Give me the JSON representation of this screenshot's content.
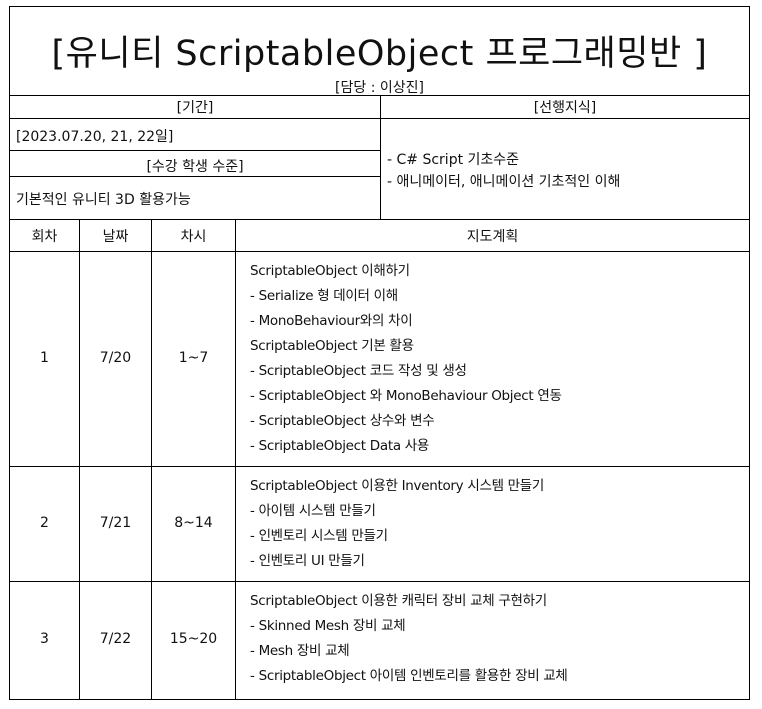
{
  "title": "[유니티 ScriptableObject 프로그래밍반 ]",
  "manager": "[담당 : 이상진]",
  "period": {
    "header": "[기간]",
    "dates": "[2023.07.20, 21, 22일]"
  },
  "student_level": {
    "header": "[수강 학생 수준]",
    "text": "기본적인 유니티 3D 활용가능"
  },
  "prerequisite": {
    "header": "[선행지식]",
    "items": [
      "- C# Script 기초수준",
      "- 애니메이터, 애니메이션 기초적인 이해"
    ]
  },
  "schedule": {
    "headers": [
      "회차",
      "날짜",
      "차시",
      "지도계획"
    ],
    "rows": [
      {
        "session": "1",
        "date": "7/20",
        "periods": "1~7",
        "plan": [
          "ScriptableObject 이해하기",
          "- Serialize 형 데이터 이해",
          "-  MonoBehaviour와의 차이",
          "ScriptableObject 기본 활용",
          "-  ScriptableObject 코드 작성 및 생성",
          "-  ScriptableObject 와 MonoBehaviour Object 연동",
          "-  ScriptableObject 상수와 변수",
          "-  ScriptableObject Data 사용"
        ]
      },
      {
        "session": "2",
        "date": "7/21",
        "periods": "8~14",
        "plan": [
          "ScriptableObject 이용한 Inventory 시스템 만들기",
          "- 아이템 시스템 만들기",
          "- 인벤토리 시스템 만들기",
          "- 인벤토리 UI 만들기"
        ]
      },
      {
        "session": "3",
        "date": "7/22",
        "periods": "15~20",
        "plan": [
          "ScriptableObject 이용한 캐릭터 장비 교체 구현하기",
          "-  Skinned Mesh 장비 교체",
          "-  Mesh 장비 교체",
          "-  ScriptableObject 아이템 인벤토리를 활용한 장비 교체"
        ]
      }
    ]
  }
}
